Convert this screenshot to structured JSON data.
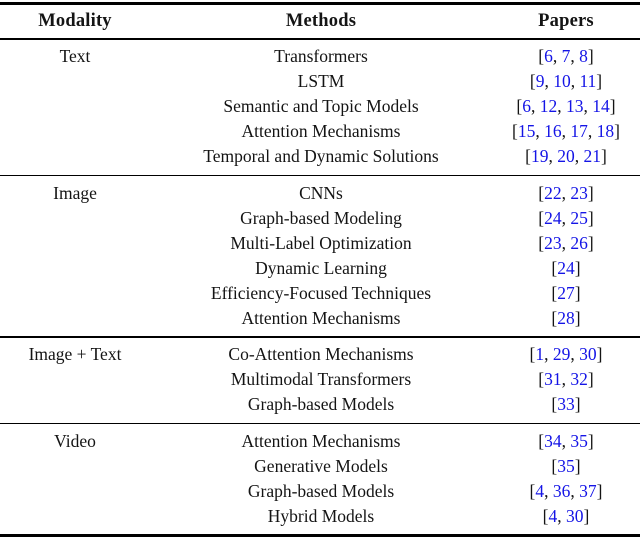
{
  "colors": {
    "citation_blue": "#1414e6",
    "text_black": "#141414",
    "rule_black": "#000000"
  },
  "table": {
    "headers": [
      "Modality",
      "Methods",
      "Papers"
    ],
    "groups": [
      {
        "modality": "Text",
        "rows": [
          {
            "method": "Transformers",
            "papers": [
              6,
              7,
              8
            ]
          },
          {
            "method": "LSTM",
            "papers": [
              9,
              10,
              11
            ]
          },
          {
            "method": "Semantic and Topic Models",
            "papers": [
              6,
              12,
              13,
              14
            ]
          },
          {
            "method": "Attention Mechanisms",
            "papers": [
              15,
              16,
              17,
              18
            ]
          },
          {
            "method": "Temporal and Dynamic Solutions",
            "papers": [
              19,
              20,
              21
            ]
          }
        ]
      },
      {
        "modality": "Image",
        "rows": [
          {
            "method": "CNNs",
            "papers": [
              22,
              23
            ]
          },
          {
            "method": "Graph-based Modeling",
            "papers": [
              24,
              25
            ]
          },
          {
            "method": "Multi-Label Optimization",
            "papers": [
              23,
              26
            ]
          },
          {
            "method": "Dynamic Learning",
            "papers": [
              24
            ]
          },
          {
            "method": "Efficiency-Focused Techniques",
            "papers": [
              27
            ]
          },
          {
            "method": "Attention Mechanisms",
            "papers": [
              28
            ]
          }
        ]
      },
      {
        "modality": "Image + Text",
        "rows": [
          {
            "method": "Co-Attention Mechanisms",
            "papers": [
              1,
              29,
              30
            ]
          },
          {
            "method": "Multimodal Transformers",
            "papers": [
              31,
              32
            ]
          },
          {
            "method": "Graph-based Models",
            "papers": [
              33
            ]
          }
        ]
      },
      {
        "modality": "Video",
        "rows": [
          {
            "method": "Attention Mechanisms",
            "papers": [
              34,
              35
            ]
          },
          {
            "method": "Generative Models",
            "papers": [
              35
            ]
          },
          {
            "method": "Graph-based Models",
            "papers": [
              4,
              36,
              37
            ]
          },
          {
            "method": "Hybrid Models",
            "papers": [
              4,
              30
            ]
          }
        ]
      }
    ]
  }
}
